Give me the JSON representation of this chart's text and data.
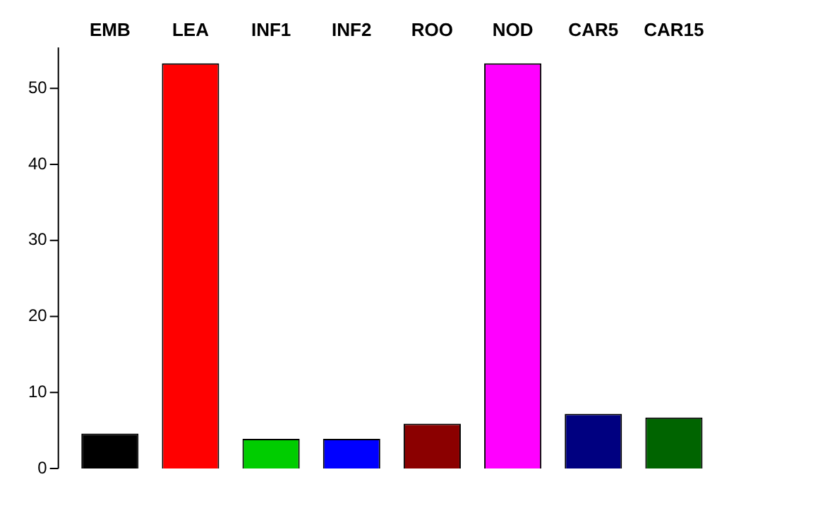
{
  "chart_data": {
    "type": "bar",
    "categories": [
      "EMB",
      "LEA",
      "INF1",
      "INF2",
      "ROO",
      "NOD",
      "CAR5",
      "CAR15"
    ],
    "values": [
      4.6,
      53.3,
      3.9,
      3.9,
      5.9,
      53.3,
      7.2,
      6.7
    ],
    "colors": [
      "#000000",
      "#ff0000",
      "#00cd00",
      "#0000ff",
      "#8b0000",
      "#ff00ff",
      "#000080",
      "#006400"
    ],
    "ylim": [
      0,
      55.4
    ],
    "yticks": [
      0,
      10,
      20,
      30,
      40,
      50
    ],
    "grid": false,
    "legend": false
  }
}
